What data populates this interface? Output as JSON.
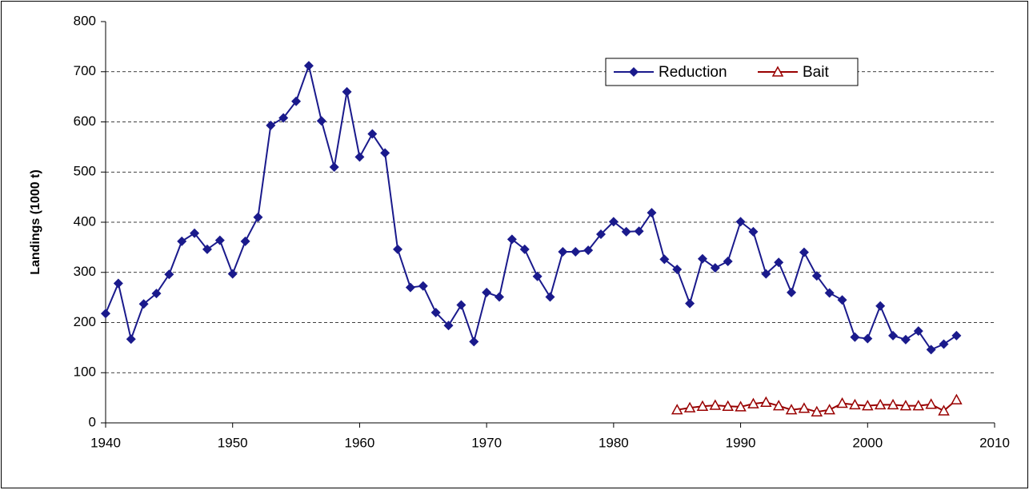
{
  "chart_data": {
    "type": "line",
    "x": [
      1940,
      1941,
      1942,
      1943,
      1944,
      1945,
      1946,
      1947,
      1948,
      1949,
      1950,
      1951,
      1952,
      1953,
      1954,
      1955,
      1956,
      1957,
      1958,
      1959,
      1960,
      1961,
      1962,
      1963,
      1964,
      1965,
      1966,
      1967,
      1968,
      1969,
      1970,
      1971,
      1972,
      1973,
      1974,
      1975,
      1976,
      1977,
      1978,
      1979,
      1980,
      1981,
      1982,
      1983,
      1984,
      1985,
      1986,
      1987,
      1988,
      1989,
      1990,
      1991,
      1992,
      1993,
      1994,
      1995,
      1996,
      1997,
      1998,
      1999,
      2000,
      2001,
      2002,
      2003,
      2004,
      2005,
      2006,
      2007
    ],
    "series": [
      {
        "name": "Reduction",
        "color": "#1a1a8c",
        "marker": "diamond",
        "values": [
          218,
          278,
          167,
          237,
          258,
          296,
          362,
          378,
          346,
          364,
          297,
          362,
          410,
          593,
          608,
          641,
          712,
          602,
          510,
          660,
          530,
          576,
          538,
          346,
          270,
          273,
          220,
          194,
          235,
          162,
          260,
          251,
          366,
          346,
          292,
          251,
          341,
          341,
          344,
          376,
          401,
          381,
          382,
          419,
          326,
          306,
          238,
          327,
          309,
          322,
          401,
          381,
          297,
          320,
          260,
          340,
          293,
          259,
          245,
          171,
          168,
          233,
          174,
          166,
          183,
          146,
          157,
          174
        ]
      },
      {
        "name": "Bait",
        "color": "#990000",
        "marker": "triangle",
        "values": [
          null,
          null,
          null,
          null,
          null,
          null,
          null,
          null,
          null,
          null,
          null,
          null,
          null,
          null,
          null,
          null,
          null,
          null,
          null,
          null,
          null,
          null,
          null,
          null,
          null,
          null,
          null,
          null,
          null,
          null,
          null,
          null,
          null,
          null,
          null,
          null,
          null,
          null,
          null,
          null,
          null,
          null,
          null,
          null,
          null,
          26,
          30,
          33,
          35,
          33,
          32,
          38,
          41,
          34,
          26,
          29,
          22,
          26,
          39,
          36,
          34,
          36,
          36,
          34,
          34,
          37,
          24,
          46
        ]
      }
    ],
    "y_label": "Landings (1000 t)",
    "xlim": [
      1940,
      2010
    ],
    "xticks": [
      1940,
      1950,
      1960,
      1970,
      1980,
      1990,
      2000,
      2010
    ],
    "ylim": [
      0,
      800
    ],
    "yticks": [
      0,
      100,
      200,
      300,
      400,
      500,
      600,
      700,
      800
    ],
    "grid": true,
    "legend": "upper right"
  }
}
